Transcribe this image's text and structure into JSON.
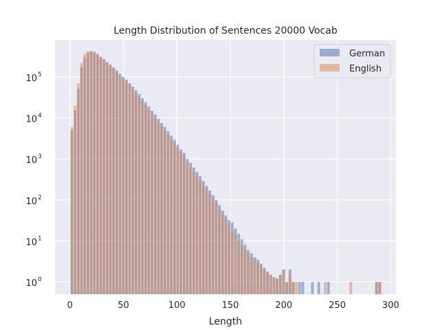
{
  "chart_data": {
    "type": "bar",
    "title": "Length Distribution of Sentences 20000 Vocab",
    "xlabel": "Length",
    "ylabel": "",
    "xlim": [
      -14,
      305
    ],
    "ylim": [
      0.5,
      800000
    ],
    "yscale": "log",
    "xticks": [
      0,
      50,
      100,
      150,
      200,
      250,
      300
    ],
    "xtick_labels": [
      "0",
      "50",
      "100",
      "150",
      "200",
      "250",
      "300"
    ],
    "yticks": [
      1,
      10,
      100,
      1000,
      10000,
      100000
    ],
    "ytick_labels": [
      {
        "base": "10",
        "exp": "0"
      },
      {
        "base": "10",
        "exp": "1"
      },
      {
        "base": "10",
        "exp": "2"
      },
      {
        "base": "10",
        "exp": "3"
      },
      {
        "base": "10",
        "exp": "4"
      },
      {
        "base": "10",
        "exp": "5"
      }
    ],
    "grid": true,
    "legend_position": "top-right",
    "bin_width": 2.9,
    "series": [
      {
        "name": "German",
        "color": "#4C72B0",
        "opacity": 0.5,
        "bins": [
          [
            2,
            5000
          ],
          [
            5,
            15000
          ],
          [
            8,
            50000
          ],
          [
            11,
            170000
          ],
          [
            14,
            300000
          ],
          [
            17,
            390000
          ],
          [
            20,
            420000
          ],
          [
            23,
            400000
          ],
          [
            26,
            360000
          ],
          [
            29,
            310000
          ],
          [
            32,
            270000
          ],
          [
            35,
            230000
          ],
          [
            38,
            200000
          ],
          [
            41,
            170000
          ],
          [
            44,
            145000
          ],
          [
            47,
            120000
          ],
          [
            50,
            100000
          ],
          [
            53,
            85000
          ],
          [
            56,
            70000
          ],
          [
            59,
            58000
          ],
          [
            62,
            47000
          ],
          [
            65,
            38000
          ],
          [
            68,
            30000
          ],
          [
            71,
            24000
          ],
          [
            74,
            19000
          ],
          [
            77,
            15000
          ],
          [
            80,
            12000
          ],
          [
            83,
            9500
          ],
          [
            86,
            7500
          ],
          [
            89,
            6000
          ],
          [
            92,
            4700
          ],
          [
            95,
            3700
          ],
          [
            98,
            2900
          ],
          [
            101,
            2200
          ],
          [
            104,
            1700
          ],
          [
            107,
            1400
          ],
          [
            110,
            1000
          ],
          [
            113,
            800
          ],
          [
            116,
            620
          ],
          [
            119,
            480
          ],
          [
            122,
            380
          ],
          [
            125,
            290
          ],
          [
            128,
            220
          ],
          [
            131,
            170
          ],
          [
            134,
            130
          ],
          [
            137,
            100
          ],
          [
            140,
            75
          ],
          [
            143,
            55
          ],
          [
            146,
            42
          ],
          [
            149,
            32
          ],
          [
            152,
            28
          ],
          [
            155,
            20
          ],
          [
            158,
            15
          ],
          [
            161,
            11
          ],
          [
            164,
            8
          ],
          [
            167,
            6
          ],
          [
            170,
            5
          ],
          [
            173,
            4
          ],
          [
            176,
            3.5
          ],
          [
            179,
            2.8
          ],
          [
            182,
            2.2
          ],
          [
            185,
            1.8
          ],
          [
            188,
            1.5
          ],
          [
            191,
            1.3
          ],
          [
            194,
            1.2
          ],
          [
            197,
            1.5
          ],
          [
            200,
            2
          ],
          [
            203,
            1
          ],
          [
            206,
            2
          ],
          [
            209,
            1
          ],
          [
            215,
            1
          ],
          [
            218,
            1
          ],
          [
            227,
            1
          ],
          [
            233,
            1
          ],
          [
            242,
            1
          ],
          [
            287,
            1
          ],
          [
            290,
            1
          ]
        ]
      },
      {
        "name": "English",
        "color": "#DD8452",
        "opacity": 0.5,
        "bins": [
          [
            2,
            6000
          ],
          [
            5,
            20000
          ],
          [
            8,
            70000
          ],
          [
            11,
            220000
          ],
          [
            14,
            360000
          ],
          [
            17,
            420000
          ],
          [
            20,
            430000
          ],
          [
            23,
            410000
          ],
          [
            26,
            350000
          ],
          [
            29,
            300000
          ],
          [
            32,
            260000
          ],
          [
            35,
            220000
          ],
          [
            38,
            190000
          ],
          [
            41,
            160000
          ],
          [
            44,
            130000
          ],
          [
            47,
            110000
          ],
          [
            50,
            90000
          ],
          [
            53,
            75000
          ],
          [
            56,
            62000
          ],
          [
            59,
            50000
          ],
          [
            62,
            40000
          ],
          [
            65,
            32000
          ],
          [
            68,
            25000
          ],
          [
            71,
            20000
          ],
          [
            74,
            16000
          ],
          [
            77,
            12500
          ],
          [
            80,
            10000
          ],
          [
            83,
            8000
          ],
          [
            86,
            6300
          ],
          [
            89,
            5000
          ],
          [
            92,
            3900
          ],
          [
            95,
            3000
          ],
          [
            98,
            2400
          ],
          [
            101,
            1900
          ],
          [
            104,
            1500
          ],
          [
            107,
            1100
          ],
          [
            110,
            850
          ],
          [
            113,
            650
          ],
          [
            116,
            500
          ],
          [
            119,
            380
          ],
          [
            122,
            300
          ],
          [
            125,
            230
          ],
          [
            128,
            180
          ],
          [
            131,
            140
          ],
          [
            134,
            110
          ],
          [
            137,
            85
          ],
          [
            140,
            60
          ],
          [
            143,
            45
          ],
          [
            146,
            33
          ],
          [
            149,
            25
          ],
          [
            152,
            18
          ],
          [
            155,
            14
          ],
          [
            158,
            10
          ],
          [
            161,
            8
          ],
          [
            164,
            6
          ],
          [
            167,
            5
          ],
          [
            170,
            4
          ],
          [
            173,
            3.5
          ],
          [
            176,
            3
          ],
          [
            179,
            2.5
          ],
          [
            182,
            2
          ],
          [
            185,
            1.7
          ],
          [
            188,
            1.4
          ],
          [
            191,
            1.3
          ],
          [
            194,
            1.2
          ],
          [
            197,
            1.5
          ],
          [
            200,
            2
          ],
          [
            203,
            1
          ],
          [
            206,
            1.5
          ],
          [
            209,
            1
          ],
          [
            212,
            1
          ],
          [
            239,
            1
          ],
          [
            263,
            1
          ],
          [
            287,
            1
          ],
          [
            290,
            1
          ]
        ]
      }
    ]
  }
}
